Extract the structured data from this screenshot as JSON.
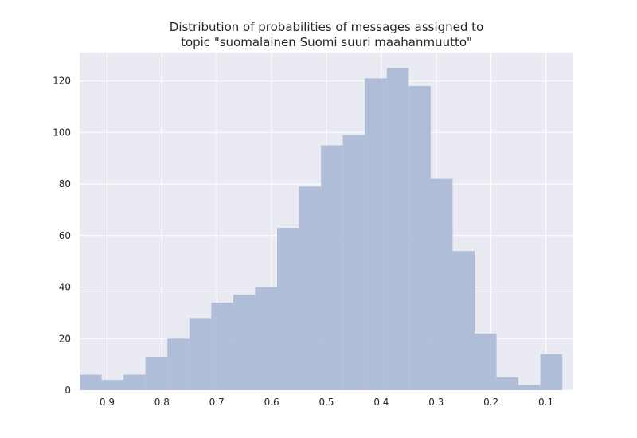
{
  "chart_data": {
    "type": "bar",
    "title_lines": [
      "Distribution of probabilities of messages assigned to",
      "topic \"suomalainen Suomi suuri maahanmuutto\""
    ],
    "xlabel": "",
    "ylabel": "",
    "x_axis_inverted": true,
    "xlim": [
      0.95,
      0.05
    ],
    "ylim": [
      0,
      131
    ],
    "x_ticks": [
      0.9,
      0.8,
      0.7,
      0.6,
      0.5,
      0.4,
      0.3,
      0.2,
      0.1
    ],
    "x_tick_labels": [
      "0.9",
      "0.8",
      "0.7",
      "0.6",
      "0.5",
      "0.4",
      "0.3",
      "0.2",
      "0.1"
    ],
    "y_ticks": [
      0,
      20,
      40,
      60,
      80,
      100,
      120
    ],
    "y_tick_labels": [
      "0",
      "20",
      "40",
      "60",
      "80",
      "100",
      "120"
    ],
    "bin_edges": [
      0.95,
      0.91,
      0.87,
      0.83,
      0.79,
      0.75,
      0.71,
      0.67,
      0.63,
      0.59,
      0.55,
      0.51,
      0.47,
      0.43,
      0.39,
      0.35,
      0.31,
      0.27,
      0.23,
      0.19,
      0.15,
      0.11,
      0.07
    ],
    "values": [
      6,
      4,
      6,
      13,
      20,
      28,
      34,
      37,
      40,
      63,
      79,
      95,
      99,
      121,
      125,
      118,
      82,
      54,
      22,
      5,
      2,
      14
    ],
    "grid": true,
    "colors": {
      "bar": "#a9b9d7",
      "plot_background": "#eaeaf2",
      "grid": "#ffffff",
      "text": "#262626"
    }
  }
}
